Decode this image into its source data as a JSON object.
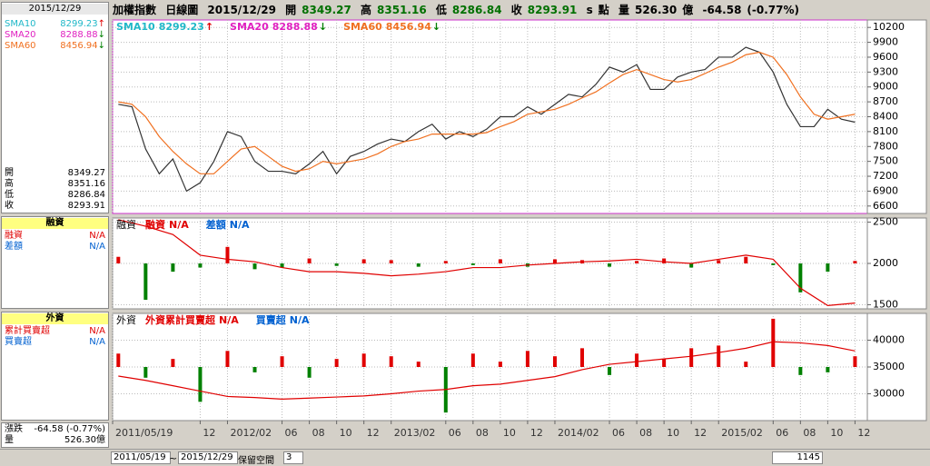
{
  "header": {
    "name": "加權指數",
    "period": "日線圖",
    "date": "2015/12/29",
    "open_label": "開",
    "open": "8349.27",
    "high_label": "高",
    "high": "8351.16",
    "low_label": "低",
    "low": "8286.84",
    "close_label": "收",
    "close": "8293.91",
    "mode": "s",
    "unit": "點",
    "volume_label": "量",
    "volume": "526.30",
    "volume_unit": "億",
    "change": "-64.58",
    "change_pct": "(-0.77%)"
  },
  "sidebar": {
    "change_label": "漲跌",
    "foreign_total": "累計買賣超",
    "foreign_net": "買賣超"
  },
  "toolbar": {
    "tilde": "~",
    "reserve": "保留空間",
    "reserve_value": "3",
    "count": "1145"
  },
  "chart_data": [
    {
      "type": "line",
      "border_color": "#cc33cc",
      "grid": true,
      "legend": [
        {
          "name": "SMA10",
          "value": "8299.23",
          "arrow": "↑",
          "color": "#20b8c8",
          "arrow_color": "#e00000"
        },
        {
          "name": "SMA20",
          "value": "8288.88",
          "arrow": "↓",
          "color": "#e020c0",
          "arrow_color": "#008000"
        },
        {
          "name": "SMA60",
          "value": "8456.94",
          "arrow": "↓",
          "color": "#f07020",
          "arrow_color": "#008000"
        }
      ],
      "xlim": [
        "2011/05/19",
        "2015/12/29"
      ],
      "xticks": [
        "2011/05/19",
        {
          "value": "2011/12",
          "label": "12"
        },
        "2012/02",
        {
          "value": "2012/06",
          "label": "06"
        },
        {
          "value": "2012/08",
          "label": "08"
        },
        {
          "value": "2012/10",
          "label": "10"
        },
        {
          "value": "2012/12",
          "label": "12"
        },
        "2013/02",
        {
          "value": "2013/06",
          "label": "06"
        },
        {
          "value": "2013/08",
          "label": "08"
        },
        {
          "value": "2013/10",
          "label": "10"
        },
        {
          "value": "2013/12",
          "label": "12"
        },
        "2014/02",
        {
          "value": "2014/06",
          "label": "06"
        },
        {
          "value": "2014/08",
          "label": "08"
        },
        {
          "value": "2014/10",
          "label": "10"
        },
        {
          "value": "2014/12",
          "label": "12"
        },
        "2015/02",
        {
          "value": "2015/06",
          "label": "06"
        },
        {
          "value": "2015/08",
          "label": "08"
        },
        {
          "value": "2015/10",
          "label": "10"
        },
        {
          "value": "2015/12",
          "label": "12"
        }
      ],
      "ylim": [
        6450,
        10350
      ],
      "yticks": [
        6600,
        6900,
        7200,
        7500,
        7800,
        8100,
        8400,
        8700,
        9000,
        9300,
        9600,
        9900,
        10200
      ],
      "x": [
        "2011/06",
        "2011/07",
        "2011/08",
        "2011/09",
        "2011/10",
        "2011/11",
        "2011/12",
        "2012/01",
        "2012/02",
        "2012/03",
        "2012/04",
        "2012/05",
        "2012/06",
        "2012/07",
        "2012/08",
        "2012/09",
        "2012/10",
        "2012/11",
        "2012/12",
        "2013/01",
        "2013/02",
        "2013/03",
        "2013/04",
        "2013/05",
        "2013/06",
        "2013/07",
        "2013/08",
        "2013/09",
        "2013/10",
        "2013/11",
        "2013/12",
        "2014/01",
        "2014/02",
        "2014/03",
        "2014/04",
        "2014/05",
        "2014/06",
        "2014/07",
        "2014/08",
        "2014/09",
        "2014/10",
        "2014/11",
        "2014/12",
        "2015/01",
        "2015/02",
        "2015/03",
        "2015/04",
        "2015/05",
        "2015/06",
        "2015/07",
        "2015/08",
        "2015/09",
        "2015/10",
        "2015/11",
        "2015/12"
      ],
      "series": [
        {
          "type": "line",
          "color": "#333333",
          "values": [
            8650,
            8600,
            7750,
            7250,
            7550,
            6900,
            7070,
            7500,
            8100,
            8000,
            7500,
            7300,
            7300,
            7250,
            7450,
            7700,
            7250,
            7600,
            7700,
            7850,
            7950,
            7900,
            8100,
            8250,
            7950,
            8100,
            8000,
            8150,
            8400,
            8400,
            8600,
            8450,
            8650,
            8850,
            8800,
            9050,
            9400,
            9300,
            9450,
            8950,
            8950,
            9200,
            9300,
            9350,
            9600,
            9600,
            9800,
            9700,
            9300,
            8650,
            8200,
            8200,
            8550,
            8350,
            8290
          ]
        },
        {
          "type": "line",
          "color": "#f07020",
          "values": [
            8700,
            8650,
            8400,
            8000,
            7700,
            7450,
            7250,
            7250,
            7500,
            7750,
            7800,
            7600,
            7400,
            7300,
            7350,
            7500,
            7450,
            7500,
            7550,
            7650,
            7800,
            7900,
            7950,
            8050,
            8050,
            8050,
            8050,
            8080,
            8200,
            8300,
            8450,
            8500,
            8550,
            8650,
            8780,
            8900,
            9080,
            9250,
            9350,
            9250,
            9150,
            9100,
            9150,
            9270,
            9400,
            9500,
            9650,
            9700,
            9600,
            9250,
            8800,
            8450,
            8350,
            8400,
            8450
          ]
        }
      ]
    },
    {
      "type": "combo",
      "title": "融資",
      "border_color": "#888888",
      "grid": true,
      "legend": [
        {
          "name": "融資",
          "value": "N/A",
          "color": "#e00000"
        },
        {
          "name": "差額",
          "value": "N/A",
          "color": "#0060d0"
        }
      ],
      "ylim": [
        1450,
        2550
      ],
      "yticks": [
        1500,
        2000,
        2500
      ],
      "x": [
        "2011/06",
        "2011/08",
        "2011/10",
        "2011/12",
        "2012/02",
        "2012/04",
        "2012/06",
        "2012/08",
        "2012/10",
        "2012/12",
        "2013/02",
        "2013/04",
        "2013/06",
        "2013/08",
        "2013/10",
        "2013/12",
        "2014/02",
        "2014/04",
        "2014/06",
        "2014/08",
        "2014/10",
        "2014/12",
        "2015/02",
        "2015/04",
        "2015/06",
        "2015/08",
        "2015/10",
        "2015/12"
      ],
      "series": [
        {
          "type": "bar",
          "baseline": 2000,
          "up_color": "#e00000",
          "down_color": "#008000",
          "values": [
            2080,
            1560,
            1900,
            1950,
            2200,
            1930,
            1950,
            2060,
            1970,
            2050,
            2040,
            1960,
            2030,
            1980,
            2050,
            1960,
            2050,
            2040,
            1960,
            2030,
            2060,
            1950,
            2040,
            2080,
            1980,
            1650,
            1900,
            2030
          ]
        },
        {
          "type": "line",
          "color": "#e00000",
          "values": [
            2530,
            2450,
            2350,
            2100,
            2050,
            2020,
            1950,
            1900,
            1900,
            1880,
            1850,
            1870,
            1900,
            1950,
            1950,
            1980,
            2000,
            2020,
            2030,
            2050,
            2020,
            2000,
            2050,
            2100,
            2050,
            1700,
            1490,
            1520
          ]
        }
      ]
    },
    {
      "type": "combo",
      "title": "外資",
      "border_color": "#888888",
      "grid": true,
      "legend": [
        {
          "name": "外資累計買賣超",
          "value": "N/A",
          "color": "#e00000"
        },
        {
          "name": "買賣超",
          "value": "N/A",
          "color": "#0060d0"
        }
      ],
      "ylim": [
        25000,
        45000
      ],
      "yticks": [
        30000,
        35000,
        40000
      ],
      "x": [
        "2011/06",
        "2011/08",
        "2011/10",
        "2011/12",
        "2012/02",
        "2012/04",
        "2012/06",
        "2012/08",
        "2012/10",
        "2012/12",
        "2013/02",
        "2013/04",
        "2013/06",
        "2013/08",
        "2013/10",
        "2013/12",
        "2014/02",
        "2014/04",
        "2014/06",
        "2014/08",
        "2014/10",
        "2014/12",
        "2015/02",
        "2015/04",
        "2015/06",
        "2015/08",
        "2015/10",
        "2015/12"
      ],
      "series": [
        {
          "type": "bar",
          "baseline": 35000,
          "up_color": "#e00000",
          "down_color": "#008000",
          "values": [
            37500,
            33000,
            36500,
            28500,
            38000,
            34000,
            37000,
            33000,
            36500,
            37500,
            37000,
            36000,
            26500,
            37500,
            36000,
            38000,
            37000,
            38500,
            33500,
            37500,
            36500,
            38500,
            39000,
            36000,
            44000,
            33500,
            34000,
            37000
          ]
        },
        {
          "type": "line",
          "color": "#e00000",
          "values": [
            33300,
            32500,
            31500,
            30500,
            29500,
            29300,
            29000,
            29200,
            29400,
            29600,
            30000,
            30500,
            30800,
            31500,
            31800,
            32500,
            33200,
            34500,
            35500,
            36000,
            36500,
            37000,
            37700,
            38500,
            39700,
            39500,
            39000,
            38000
          ]
        }
      ]
    }
  ]
}
